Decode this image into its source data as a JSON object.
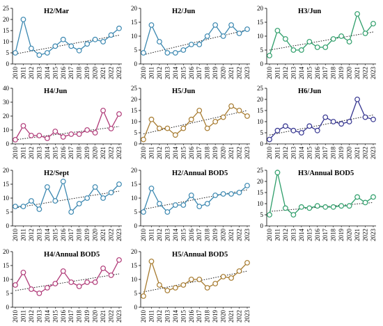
{
  "chart_data": [
    {
      "type": "line",
      "title": "H2/Mar",
      "color": "#3a87b0",
      "x": [
        2010,
        2011,
        2012,
        2013,
        2014,
        2015,
        2016,
        2017,
        2018,
        2019,
        2020,
        2021,
        2022,
        2023
      ],
      "values": [
        5,
        20,
        7,
        4,
        5,
        8,
        11,
        8,
        6,
        9,
        11,
        10,
        13,
        16
      ],
      "trend": [
        4.5,
        12.9
      ],
      "ylim": [
        0,
        25
      ],
      "yticks": [
        0,
        5,
        10,
        15,
        20,
        25
      ]
    },
    {
      "type": "line",
      "title": "H2/Jun",
      "color": "#3a87b0",
      "x": [
        2010,
        2011,
        2012,
        2013,
        2014,
        2015,
        2016,
        2017,
        2018,
        2019,
        2020,
        2021,
        2022,
        2023
      ],
      "values": [
        4,
        14,
        8,
        4,
        4,
        5,
        7,
        7,
        10,
        14,
        10,
        14,
        11,
        12.5
      ],
      "trend": [
        3.3,
        12.3
      ],
      "ylim": [
        0,
        20
      ],
      "yticks": [
        0,
        5,
        10,
        15,
        20
      ]
    },
    {
      "type": "line",
      "title": "H3/Jun",
      "color": "#2e9e6a",
      "x": [
        2010,
        2011,
        2012,
        2013,
        2014,
        2015,
        2016,
        2017,
        2018,
        2019,
        2020,
        2021,
        2022,
        2023
      ],
      "values": [
        3,
        12,
        9,
        5,
        5,
        8,
        6,
        6,
        9,
        10,
        8,
        18,
        11,
        14.5
      ],
      "trend": [
        5.0,
        11.5
      ],
      "ylim": [
        0,
        20
      ],
      "yticks": [
        0,
        5,
        10,
        15,
        20
      ]
    },
    {
      "type": "line",
      "title": "H4/Jun",
      "color": "#b03a78",
      "x": [
        2010,
        2011,
        2012,
        2013,
        2014,
        2015,
        2016,
        2017,
        2018,
        2019,
        2020,
        2021,
        2022,
        2023
      ],
      "values": [
        3,
        13,
        6,
        6,
        4,
        9,
        5,
        7,
        7,
        10,
        8,
        24,
        11,
        21.5
      ],
      "trend": [
        3.0,
        12.5
      ],
      "ylim": [
        0,
        40
      ],
      "yticks": [
        0,
        10,
        20,
        30,
        40
      ]
    },
    {
      "type": "line",
      "title": "H5/Jun",
      "color": "#a67a2e",
      "x": [
        2010,
        2011,
        2012,
        2013,
        2014,
        2015,
        2016,
        2017,
        2018,
        2019,
        2020,
        2021,
        2022,
        2023
      ],
      "values": [
        2,
        11,
        7,
        7,
        4,
        7,
        11,
        15,
        7,
        10,
        12,
        17,
        15,
        12.5
      ],
      "trend": [
        4.5,
        15.0
      ],
      "ylim": [
        0,
        25
      ],
      "yticks": [
        0,
        5,
        10,
        15,
        20,
        25
      ]
    },
    {
      "type": "line",
      "title": "H6/Jun",
      "color": "#33338f",
      "x": [
        2010,
        2011,
        2012,
        2013,
        2014,
        2015,
        2016,
        2017,
        2018,
        2019,
        2020,
        2021,
        2022,
        2023
      ],
      "values": [
        2,
        6,
        8,
        6,
        5,
        8,
        6,
        12,
        10,
        9,
        10,
        20,
        12,
        11
      ],
      "trend": [
        4.0,
        13.0
      ],
      "ylim": [
        0,
        25
      ],
      "yticks": [
        0,
        5,
        10,
        15,
        20,
        25
      ]
    },
    {
      "type": "line",
      "title": "H2/Sept",
      "color": "#3a87b0",
      "x": [
        2010,
        2011,
        2012,
        2013,
        2014,
        2015,
        2016,
        2017,
        2018,
        2019,
        2020,
        2021,
        2022,
        2023
      ],
      "values": [
        7,
        7,
        9,
        6,
        14,
        9,
        16,
        5,
        8,
        10,
        14,
        10,
        12,
        15
      ],
      "trend": [
        6.5,
        12.5
      ],
      "ylim": [
        0,
        20
      ],
      "yticks": [
        0,
        5,
        10,
        15,
        20
      ]
    },
    {
      "type": "line",
      "title": "H2/Annual BOD5",
      "color": "#3a87b0",
      "x": [
        2010,
        2011,
        2012,
        2013,
        2014,
        2015,
        2016,
        2017,
        2018,
        2019,
        2020,
        2021,
        2022,
        2023
      ],
      "values": [
        5,
        13.5,
        8,
        5,
        7.5,
        7.5,
        11,
        7,
        8,
        11,
        11.5,
        11.5,
        12,
        14.5
      ],
      "trend": [
        6.0,
        13.0
      ],
      "ylim": [
        0,
        20
      ],
      "yticks": [
        0,
        5,
        10,
        15,
        20
      ]
    },
    {
      "type": "line",
      "title": "H3/Annual BOD5",
      "color": "#2e9e6a",
      "x": [
        2010,
        2011,
        2012,
        2013,
        2014,
        2015,
        2016,
        2017,
        2018,
        2019,
        2020,
        2021,
        2022,
        2023
      ],
      "values": [
        5,
        24,
        8,
        5,
        8.5,
        8,
        9,
        8.5,
        8.5,
        9,
        9,
        13,
        10.5,
        13
      ],
      "trend": [
        6.5,
        10.5
      ],
      "ylim": [
        0,
        25
      ],
      "yticks": [
        0,
        5,
        10,
        15,
        20,
        25
      ]
    },
    {
      "type": "line",
      "title": "H4/Annual BOD5",
      "color": "#b03a78",
      "x": [
        2010,
        2011,
        2012,
        2013,
        2014,
        2015,
        2016,
        2017,
        2018,
        2019,
        2020,
        2021,
        2022,
        2023
      ],
      "values": [
        8,
        12.5,
        6.5,
        5,
        7,
        8.5,
        13,
        9,
        7.5,
        9,
        9,
        14,
        11.5,
        17
      ],
      "trend": [
        6.0,
        12.0
      ],
      "ylim": [
        0,
        20
      ],
      "yticks": [
        0,
        5,
        10,
        15,
        20
      ]
    },
    {
      "type": "line",
      "title": "H5/Annual BOD5",
      "color": "#a67a2e",
      "x": [
        2010,
        2011,
        2012,
        2013,
        2014,
        2015,
        2016,
        2017,
        2018,
        2019,
        2020,
        2021,
        2022,
        2023
      ],
      "values": [
        4,
        16.5,
        8,
        6,
        7,
        8,
        10,
        10,
        7,
        8.5,
        11,
        10.5,
        13,
        16
      ],
      "trend": [
        5.5,
        13.0
      ],
      "ylim": [
        0,
        20
      ],
      "yticks": [
        0,
        5,
        10,
        15,
        20
      ]
    }
  ]
}
